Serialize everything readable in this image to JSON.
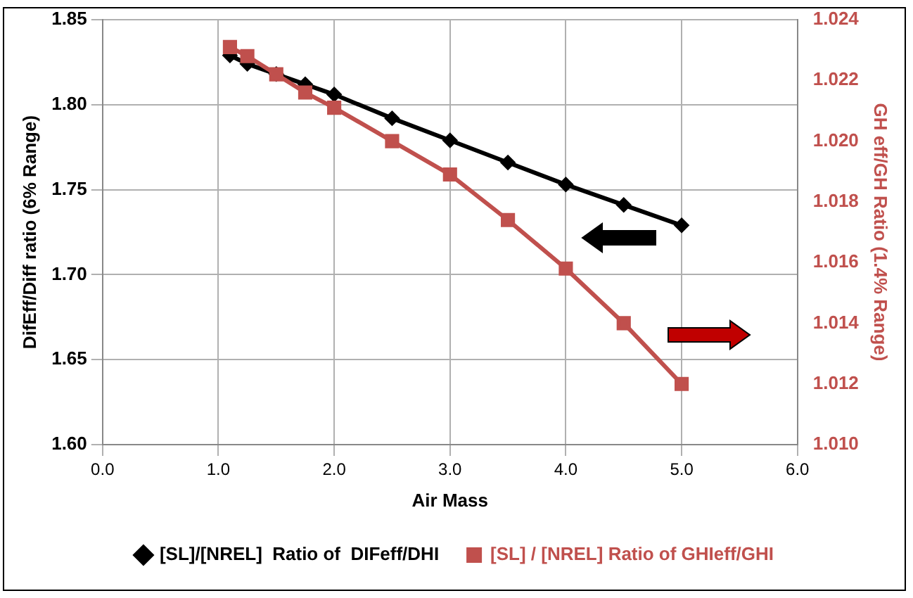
{
  "chart_data": {
    "type": "line",
    "xlabel": "Air Mass",
    "ylabel": "DifEff/Diff ratio (6% Range)",
    "y2label": "GH eff/GH Ratio (1.4% Range)",
    "x": [
      1.1,
      1.25,
      1.5,
      1.75,
      2.0,
      2.5,
      3.0,
      3.5,
      4.0,
      4.5,
      5.0
    ],
    "series": [
      {
        "name": "[SL]/[NREL]  Ratio of  DIFeff/DHI",
        "color": "#000000",
        "marker": "diamond",
        "values": [
          1.829,
          1.824,
          1.818,
          1.812,
          1.806,
          1.792,
          1.779,
          1.766,
          1.753,
          1.741,
          1.729
        ]
      },
      {
        "name": "[SL] / [NREL] Ratio of GHIeff/GHI",
        "color": "#c0504d",
        "marker": "square",
        "axis": "y2",
        "values": [
          1.0231,
          1.0228,
          1.0222,
          1.0216,
          1.0211,
          1.02,
          1.0189,
          1.0174,
          1.0158,
          1.014,
          1.012
        ]
      }
    ],
    "xlim": [
      0,
      6
    ],
    "xticks": [
      {
        "value": 0,
        "label": "0.0"
      },
      {
        "value": 1,
        "label": "1.0"
      },
      {
        "value": 2,
        "label": "2.0"
      },
      {
        "value": 3,
        "label": "3.0"
      },
      {
        "value": 4,
        "label": "4.0"
      },
      {
        "value": 5,
        "label": "5.0"
      },
      {
        "value": 6,
        "label": "6.0"
      }
    ],
    "ylim": [
      1.6,
      1.85
    ],
    "yticks": [
      {
        "value": 1.6,
        "label": "1.60"
      },
      {
        "value": 1.65,
        "label": "1.65"
      },
      {
        "value": 1.7,
        "label": "1.70"
      },
      {
        "value": 1.75,
        "label": "1.75"
      },
      {
        "value": 1.8,
        "label": "1.80"
      },
      {
        "value": 1.85,
        "label": "1.85"
      }
    ],
    "y2lim": [
      1.01,
      1.024
    ],
    "y2ticks": [
      {
        "value": 1.01,
        "label": "1.010"
      },
      {
        "value": 1.012,
        "label": "1.012"
      },
      {
        "value": 1.014,
        "label": "1.014"
      },
      {
        "value": 1.016,
        "label": "1.016"
      },
      {
        "value": 1.018,
        "label": "1.018"
      },
      {
        "value": 1.02,
        "label": "1.020"
      },
      {
        "value": 1.022,
        "label": "1.022"
      },
      {
        "value": 1.024,
        "label": "1.024"
      }
    ],
    "grid": true,
    "legend": "bottom"
  }
}
